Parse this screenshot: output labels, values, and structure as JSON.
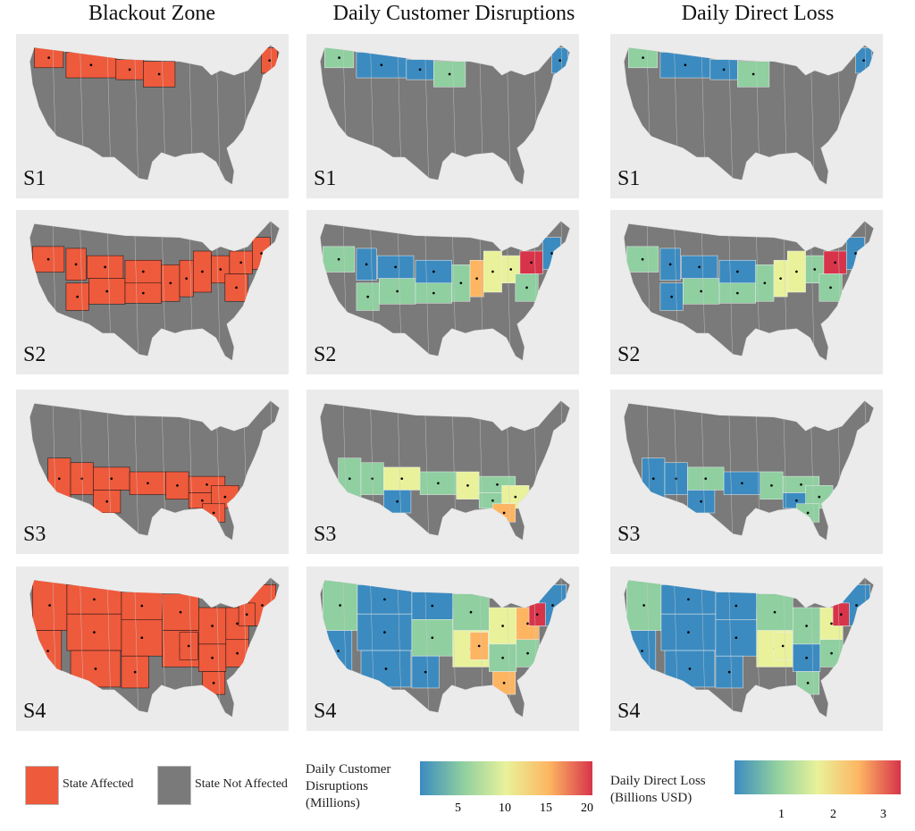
{
  "columns": [
    "Blackout Zone",
    "Daily Customer Disruptions",
    "Daily Direct Loss"
  ],
  "scenarios": [
    "S1",
    "S2",
    "S3",
    "S4"
  ],
  "legend": {
    "affected": "State Affected",
    "not_affected": "State Not Affected",
    "disruptions_title_1": "Daily Customer",
    "disruptions_title_2": "Disruptions",
    "disruptions_title_3": "(Millions)",
    "disruptions_ticks": [
      "5",
      "10",
      "15",
      "20"
    ],
    "loss_title_1": "Daily Direct Loss",
    "loss_title_2": "(Billions USD)",
    "loss_ticks": [
      "1",
      "2",
      "3"
    ]
  },
  "colors": {
    "affected": "#ee5a3c",
    "not_affected": "#7a7a7a",
    "panel_bg": "#ebebeb",
    "scale": [
      "#3b8bc0",
      "#8fcfa0",
      "#e9f29a",
      "#fdb562",
      "#d7344a"
    ]
  }
}
